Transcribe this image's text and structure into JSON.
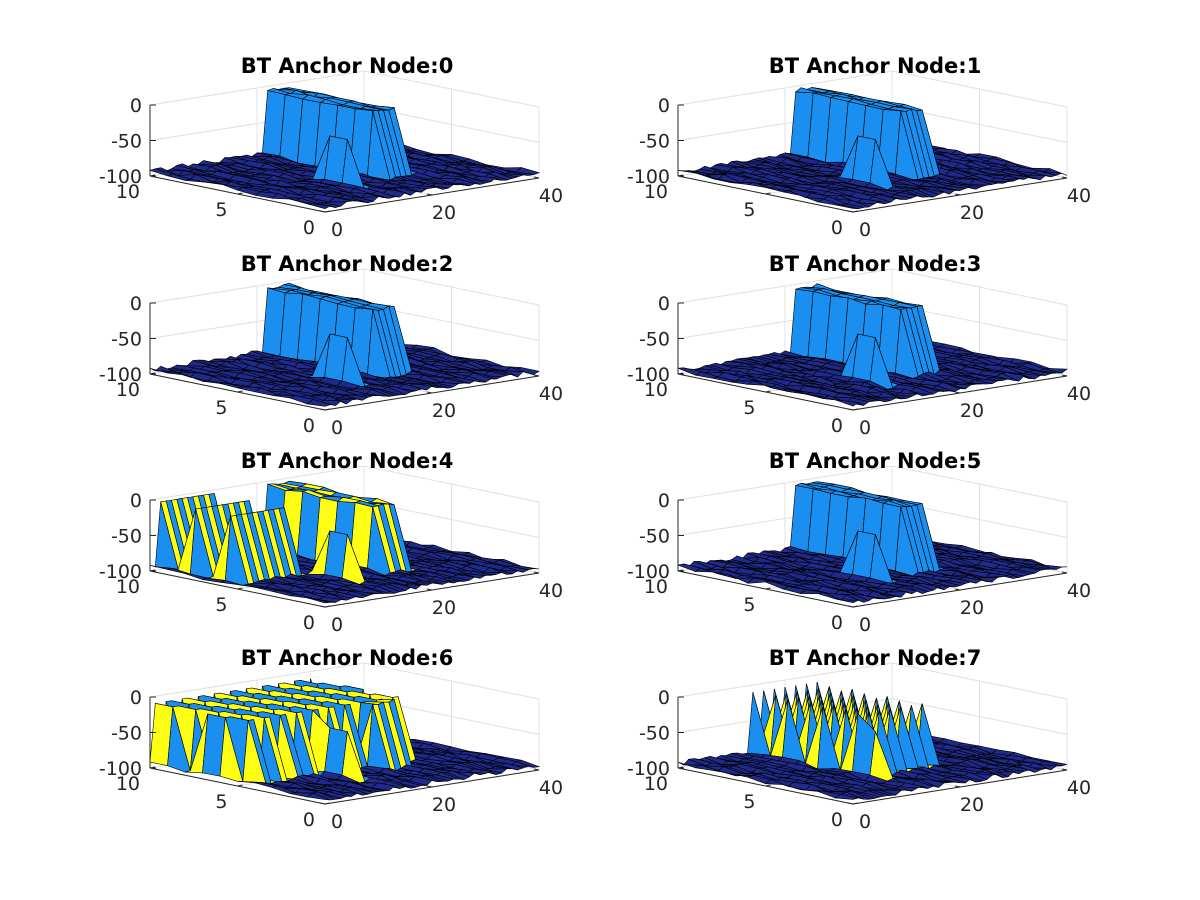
{
  "colors": {
    "low": "#1f2a8c",
    "mid": "#2f5fd6",
    "high": "#1b8ff0",
    "wall": "#ffff14",
    "edge": "#000000",
    "grid": "#e0e0e0",
    "axis": "#262626"
  },
  "chart_data": [
    {
      "type": "surface",
      "title": "BT Anchor Node:0",
      "xlim": [
        0,
        40
      ],
      "ylim": [
        0,
        10
      ],
      "zlim": [
        -100,
        0
      ],
      "xticks": [
        "0",
        "20",
        "40"
      ],
      "yticks": [
        "0",
        "5",
        "10"
      ],
      "zticks": [
        "0",
        "-50",
        "-100"
      ],
      "grid": true,
      "features": {
        "peak1": {
          "x": 14,
          "y": 3.5,
          "z": -30
        },
        "plateau": {
          "x0": 22,
          "x1": 26,
          "y0": 4,
          "y1": 10,
          "z": -3
        },
        "walls": 0
      }
    },
    {
      "type": "surface",
      "title": "BT Anchor Node:1",
      "xlim": [
        0,
        40
      ],
      "ylim": [
        0,
        10
      ],
      "zlim": [
        -100,
        0
      ],
      "xticks": [
        "0",
        "20",
        "40"
      ],
      "yticks": [
        "0",
        "5",
        "10"
      ],
      "zticks": [
        "0",
        "-50",
        "-100"
      ],
      "grid": true,
      "features": {
        "peak1": {
          "x": 14,
          "y": 3.5,
          "z": -30
        },
        "plateau": {
          "x0": 22,
          "x1": 26,
          "y0": 4,
          "y1": 10,
          "z": -3
        },
        "walls": 0
      }
    },
    {
      "type": "surface",
      "title": "BT Anchor Node:2",
      "xlim": [
        0,
        40
      ],
      "ylim": [
        0,
        10
      ],
      "zlim": [
        -100,
        0
      ],
      "xticks": [
        "0",
        "20",
        "40"
      ],
      "yticks": [
        "0",
        "5",
        "10"
      ],
      "zticks": [
        "0",
        "-50",
        "-100"
      ],
      "grid": true,
      "features": {
        "peak1": {
          "x": 14,
          "y": 3.5,
          "z": -30
        },
        "plateau": {
          "x0": 22,
          "x1": 26,
          "y0": 4,
          "y1": 10,
          "z": -3
        },
        "walls": 0
      }
    },
    {
      "type": "surface",
      "title": "BT Anchor Node:3",
      "xlim": [
        0,
        40
      ],
      "ylim": [
        0,
        10
      ],
      "zlim": [
        -100,
        0
      ],
      "xticks": [
        "0",
        "20",
        "40"
      ],
      "yticks": [
        "0",
        "5",
        "10"
      ],
      "zticks": [
        "0",
        "-50",
        "-100"
      ],
      "grid": true,
      "features": {
        "peak1": {
          "x": 14,
          "y": 3.5,
          "z": -30
        },
        "plateau": {
          "x0": 22,
          "x1": 26,
          "y0": 4,
          "y1": 10,
          "z": -3
        },
        "walls": 0
      }
    },
    {
      "type": "surface",
      "title": "BT Anchor Node:4",
      "xlim": [
        0,
        40
      ],
      "ylim": [
        0,
        10
      ],
      "zlim": [
        -100,
        0
      ],
      "xticks": [
        "0",
        "20",
        "40"
      ],
      "yticks": [
        "0",
        "5",
        "10"
      ],
      "zticks": [
        "0",
        "-50",
        "-100"
      ],
      "grid": true,
      "features": {
        "peak1": {
          "x": 14,
          "y": 3.5,
          "z": -30
        },
        "plateau": {
          "x0": 22,
          "x1": 26,
          "y0": 4,
          "y1": 10,
          "z": -3
        },
        "walls": 1
      }
    },
    {
      "type": "surface",
      "title": "BT Anchor Node:5",
      "xlim": [
        0,
        40
      ],
      "ylim": [
        0,
        10
      ],
      "zlim": [
        -100,
        0
      ],
      "xticks": [
        "0",
        "20",
        "40"
      ],
      "yticks": [
        "0",
        "5",
        "10"
      ],
      "zticks": [
        "0",
        "-50",
        "-100"
      ],
      "grid": true,
      "features": {
        "peak1": {
          "x": 14,
          "y": 3.5,
          "z": -30
        },
        "plateau": {
          "x0": 22,
          "x1": 26,
          "y0": 4,
          "y1": 10,
          "z": -3
        },
        "walls": 0
      }
    },
    {
      "type": "surface",
      "title": "BT Anchor Node:6",
      "xlim": [
        0,
        40
      ],
      "ylim": [
        0,
        10
      ],
      "zlim": [
        -100,
        0
      ],
      "xticks": [
        "0",
        "20",
        "40"
      ],
      "yticks": [
        "0",
        "5",
        "10"
      ],
      "zticks": [
        "0",
        "-50",
        "-100"
      ],
      "grid": true,
      "features": {
        "peak1": {
          "x": 14,
          "y": 3.5,
          "z": -30
        },
        "plateau": {
          "x0": 22,
          "x1": 26,
          "y0": 4,
          "y1": 10,
          "z": -3
        },
        "walls": 2
      }
    },
    {
      "type": "surface",
      "title": "BT Anchor Node:7",
      "xlim": [
        0,
        40
      ],
      "ylim": [
        0,
        10
      ],
      "zlim": [
        -100,
        0
      ],
      "xticks": [
        "0",
        "20",
        "40"
      ],
      "yticks": [
        "0",
        "5",
        "10"
      ],
      "zticks": [
        "0",
        "-50",
        "-100"
      ],
      "grid": true,
      "features": {
        "peak1": {
          "x": 14,
          "y": 3.5,
          "z": -30
        },
        "plateau": {
          "x0": 22,
          "x1": 26,
          "y0": 4,
          "y1": 10,
          "z": -3
        },
        "walls": 3
      }
    }
  ]
}
